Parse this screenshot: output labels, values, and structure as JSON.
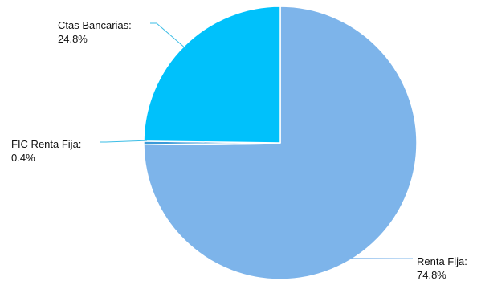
{
  "chart_data": {
    "type": "pie",
    "slices": [
      {
        "label": "Renta Fija",
        "value": 74.8,
        "value_text": "74.8%",
        "color": "#7db4ea"
      },
      {
        "label": "FIC Renta Fija",
        "value": 0.4,
        "value_text": "0.4%",
        "color": "#3a9ad8"
      },
      {
        "label": "Ctas Bancarias",
        "value": 24.8,
        "value_text": "24.8%",
        "color": "#00c1fb"
      }
    ],
    "label_suffix": ":",
    "start_angle": "12 o'clock",
    "direction": "clockwise",
    "labels_with_leader_lines": true,
    "legend": "none"
  }
}
